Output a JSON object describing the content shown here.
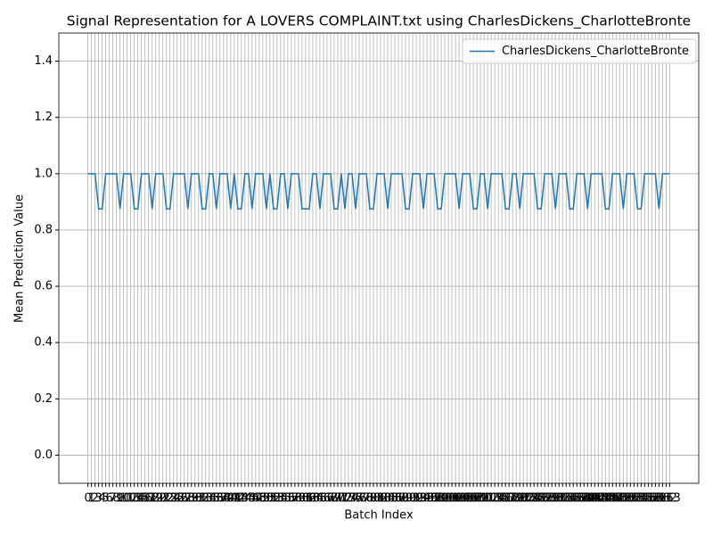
{
  "chart_data": {
    "type": "line",
    "title": "Signal Representation for A LOVERS COMPLAINT.txt using CharlesDickens_CharlotteBronte",
    "x_label": "Batch Index",
    "y_label": "Mean Prediction Value",
    "x": [
      0,
      1,
      2,
      3,
      4,
      5,
      6,
      7,
      8,
      9,
      10,
      11,
      12,
      13,
      14,
      15,
      16,
      17,
      18,
      19,
      20,
      21,
      22,
      23,
      24,
      25,
      26,
      27,
      28,
      29,
      30,
      31,
      32,
      33,
      34,
      35,
      36,
      37,
      38,
      39,
      40,
      41,
      42,
      43,
      44,
      45,
      46,
      47,
      48,
      49,
      50,
      51,
      52,
      53,
      54,
      55,
      56,
      57,
      58,
      59,
      60,
      61,
      62,
      63,
      64,
      65,
      66,
      67,
      68,
      69,
      70,
      71,
      72,
      73,
      74,
      75,
      76,
      77,
      78,
      79,
      80,
      81,
      82,
      83,
      84,
      85,
      86,
      87,
      88,
      89,
      90,
      91,
      92,
      93,
      94,
      95,
      96,
      97,
      98,
      99,
      100,
      101,
      102,
      103,
      104,
      105,
      106,
      107,
      108,
      109,
      110,
      111,
      112,
      113,
      114,
      115,
      116,
      117,
      118,
      119,
      120,
      121,
      122,
      123,
      124,
      125,
      126,
      127,
      128,
      129,
      130,
      131,
      132,
      133,
      134,
      135,
      136,
      137,
      138,
      139,
      140,
      141,
      142,
      143,
      144,
      145,
      146,
      147,
      148,
      149,
      150,
      151,
      152,
      153,
      154,
      155,
      156,
      157,
      158,
      159,
      160,
      161,
      162,
      163
    ],
    "series": [
      {
        "name": "CharlesDickens_CharlotteBronte",
        "color": "#1f77b4",
        "values": [
          1,
          1,
          1,
          0.875,
          0.875,
          1,
          1,
          1,
          1,
          0.875,
          1,
          1,
          1,
          0.875,
          0.875,
          1,
          1,
          1,
          0.875,
          1,
          1,
          1,
          0.875,
          0.875,
          1,
          1,
          1,
          1,
          0.875,
          1,
          1,
          1,
          0.875,
          0.875,
          1,
          1,
          0.875,
          1,
          1,
          1,
          0.875,
          1,
          0.875,
          0.875,
          1,
          1,
          0.875,
          1,
          1,
          1,
          0.875,
          1,
          0.875,
          0.875,
          1,
          1,
          0.875,
          1,
          1,
          1,
          0.875,
          0.875,
          0.875,
          1,
          1,
          0.875,
          1,
          1,
          1,
          0.875,
          0.875,
          1,
          0.875,
          1,
          1,
          0.875,
          1,
          1,
          1,
          0.875,
          0.875,
          1,
          1,
          1,
          0.875,
          1,
          1,
          1,
          1,
          0.875,
          0.875,
          1,
          1,
          1,
          0.875,
          1,
          1,
          1,
          0.875,
          0.875,
          1,
          1,
          1,
          1,
          0.875,
          1,
          1,
          1,
          0.875,
          0.875,
          1,
          1,
          0.875,
          1,
          1,
          1,
          1,
          0.875,
          0.875,
          1,
          1,
          0.875,
          1,
          1,
          1,
          1,
          0.875,
          0.875,
          1,
          1,
          1,
          0.875,
          1,
          1,
          1,
          0.875,
          0.875,
          1,
          1,
          1,
          0.875,
          1,
          1,
          1,
          1,
          0.875,
          0.875,
          1,
          1,
          1,
          0.875,
          1,
          1,
          1,
          0.875,
          0.875,
          1,
          1,
          1,
          1,
          0.875,
          1,
          1,
          1
        ]
      }
    ],
    "xlim": [
      -8.15,
      171.15
    ],
    "ylim": [
      -0.1,
      1.5
    ],
    "yticks": [
      {
        "value": 0,
        "label": "0.0"
      },
      {
        "value": 0.2,
        "label": "0.2"
      },
      {
        "value": 0.4,
        "label": "0.4"
      },
      {
        "value": 0.6,
        "label": "0.6"
      },
      {
        "value": 0.8,
        "label": "0.8"
      },
      {
        "value": 1,
        "label": "1.0"
      },
      {
        "value": 1.2,
        "label": "1.2"
      },
      {
        "value": 1.4,
        "label": "1.4"
      }
    ],
    "grid": true,
    "legend": "upper right"
  }
}
